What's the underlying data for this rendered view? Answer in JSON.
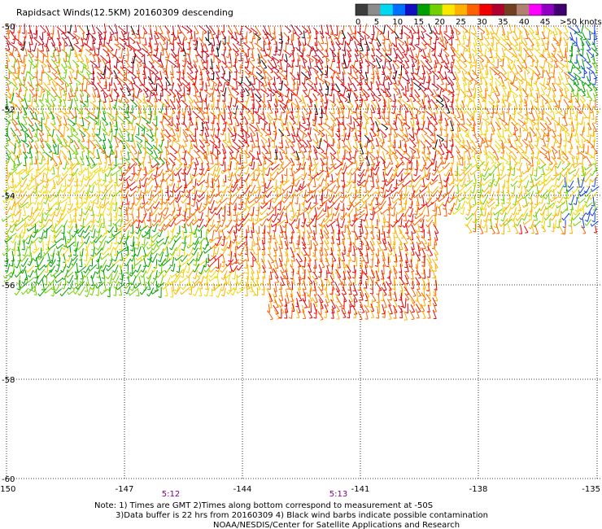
{
  "title": "Rapidsact Winds(12.5KM) 20160309 descending",
  "legend": {
    "labels": [
      "0",
      "5",
      "10",
      "15",
      "20",
      "25",
      "30",
      "35",
      "40",
      "45",
      ">50 knots"
    ],
    "colors": [
      "#3c3c3c",
      "#8c8c8c",
      "#00d8f0",
      "#0070ff",
      "#1010c0",
      "#00a000",
      "#70d000",
      "#f8e800",
      "#ffb000",
      "#ff6000",
      "#f00000",
      "#b00030",
      "#704020",
      "#b08070",
      "#ff00ff",
      "#9000c0",
      "#400070"
    ]
  },
  "axes": {
    "lat_labels": [
      "-50",
      "-52",
      "-54",
      "-56",
      "-58",
      "-60"
    ],
    "lon_labels": [
      "-150",
      "-147",
      "-144",
      "-141",
      "-138",
      "-135"
    ]
  },
  "times": [
    "5:12",
    "5:13"
  ],
  "notes": {
    "line1": "Note: 1) Times are GMT 2)Times along bottom correspond to measurement at -50S",
    "line2": "3)Data buffer is 22 hrs from 20160309 4) Black wind barbs indicate possible contamination",
    "line3": "NOAA/NESDIS/Center for Satellite Applications and Research"
  }
}
